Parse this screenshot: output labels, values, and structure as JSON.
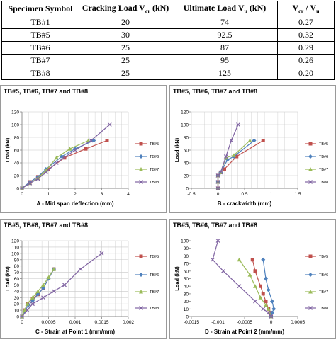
{
  "table": {
    "headers": [
      "Specimen  Symbol",
      "Cracking Load  V",
      "cr",
      " (kN)",
      "Ultimate Load  V",
      "u",
      " (kN)",
      "V",
      "cr",
      " / V",
      "u"
    ],
    "rows": [
      [
        "TB#1",
        "20",
        "74",
        "0.27"
      ],
      [
        "TB#5",
        "30",
        "92.5",
        "0.32"
      ],
      [
        "TB#6",
        "25",
        "87",
        "0.29"
      ],
      [
        "TB#7",
        "25",
        "95",
        "0.26"
      ],
      [
        "TB#8",
        "25",
        "125",
        "0.20"
      ]
    ]
  },
  "colors": {
    "TB#5": "#c0504d",
    "TB#6": "#4f81bd",
    "TB#7": "#9bbb59",
    "TB#8": "#8064a2",
    "grid": "#c8c8c8"
  },
  "chart_data": [
    {
      "type": "line",
      "title": "TB#5, TB#6, TB#7 and TB#8",
      "xlabel": "A - Mid span deflection (mm)",
      "ylabel": "Load (kN)",
      "xlim": [
        0,
        4
      ],
      "ylim": [
        0,
        120
      ],
      "xticks": [
        "0",
        "1",
        "2",
        "3",
        "4"
      ],
      "yticks": [
        "0",
        "20",
        "40",
        "60",
        "80",
        "100",
        "120"
      ],
      "grid": true,
      "legend": "right",
      "series": [
        {
          "name": "TB#5",
          "x": [
            0,
            0.3,
            0.6,
            1.0,
            1.6,
            2.4,
            3.2
          ],
          "y": [
            0,
            10,
            18,
            30,
            48,
            62,
            75
          ]
        },
        {
          "name": "TB#6",
          "x": [
            0,
            0.3,
            0.6,
            0.9,
            1.5,
            2.0,
            2.7
          ],
          "y": [
            0,
            10,
            18,
            30,
            50,
            62,
            75
          ]
        },
        {
          "name": "TB#7",
          "x": [
            0,
            0.3,
            0.6,
            0.9,
            1.3,
            1.8,
            2.5
          ],
          "y": [
            0,
            8,
            16,
            28,
            48,
            62,
            75
          ]
        },
        {
          "name": "TB#8",
          "x": [
            0,
            0.3,
            0.6,
            0.9,
            1.3,
            2.0,
            2.6,
            3.3
          ],
          "y": [
            0,
            8,
            15,
            25,
            40,
            60,
            75,
            100
          ]
        }
      ]
    },
    {
      "type": "line",
      "title": "TB#5, TB#6, TB#7 and TB#8",
      "xlabel": "B - crackwidth (mm)",
      "ylabel": "Load (kN)",
      "xlim": [
        -0.5,
        1.5
      ],
      "ylim": [
        0,
        120
      ],
      "xticks": [
        "-0.5",
        "0",
        "0.5",
        "1",
        "1.5"
      ],
      "yticks": [
        "0",
        "20",
        "40",
        "60",
        "80",
        "100",
        "120"
      ],
      "grid": true,
      "legend": "right",
      "series": [
        {
          "name": "TB#5",
          "x": [
            0,
            0,
            0,
            0.05,
            0.12,
            0.35,
            0.85
          ],
          "y": [
            0,
            10,
            20,
            25,
            30,
            50,
            75
          ]
        },
        {
          "name": "TB#6",
          "x": [
            0,
            0,
            0,
            0.05,
            0.18,
            0.3,
            0.68
          ],
          "y": [
            0,
            10,
            20,
            25,
            45,
            50,
            75
          ]
        },
        {
          "name": "TB#7",
          "x": [
            0,
            0,
            0,
            0.05,
            0.15,
            0.3,
            0.6
          ],
          "y": [
            0,
            10,
            20,
            25,
            48,
            52,
            75
          ]
        },
        {
          "name": "TB#8",
          "x": [
            0,
            0,
            0,
            0.05,
            0.15,
            0.25,
            0.38
          ],
          "y": [
            0,
            10,
            20,
            25,
            50,
            75,
            100
          ]
        }
      ]
    },
    {
      "type": "line",
      "title": "TB#5, TB#6, TB#7 and TB#8",
      "xlabel": "C - Strain at Point 1 (mm/mm)",
      "ylabel": "Load (kN)",
      "xlim": [
        0,
        0.002
      ],
      "ylim": [
        0,
        120
      ],
      "xticks": [
        "0",
        "0.0005",
        "0.001",
        "0.0015",
        "0.002"
      ],
      "yticks": [
        "0",
        "10",
        "20",
        "30",
        "40",
        "50",
        "60",
        "70",
        "80",
        "90",
        "100",
        "110",
        "120"
      ],
      "grid": true,
      "legend": "right",
      "series": [
        {
          "name": "TB#5",
          "x": [
            0,
            5e-05,
            0.0001,
            0.0002,
            0.0003,
            0.0004,
            0.0005,
            0.0006
          ],
          "y": [
            0,
            10,
            20,
            28,
            35,
            45,
            60,
            75
          ]
        },
        {
          "name": "TB#6",
          "x": [
            0,
            5e-05,
            0.00012,
            0.0002,
            0.0003,
            0.0004,
            0.0005,
            0.0006
          ],
          "y": [
            0,
            8,
            18,
            25,
            35,
            45,
            60,
            75
          ]
        },
        {
          "name": "TB#7",
          "x": [
            0,
            5e-05,
            0.0001,
            0.0002,
            0.0003,
            0.0004,
            0.0005,
            0.0006
          ],
          "y": [
            0,
            10,
            20,
            30,
            40,
            50,
            62,
            75
          ]
        },
        {
          "name": "TB#8",
          "x": [
            0,
            0.0001,
            0.0002,
            0.0004,
            0.0006,
            0.0008,
            0.0011,
            0.0015
          ],
          "y": [
            0,
            10,
            20,
            30,
            40,
            50,
            75,
            100
          ]
        }
      ]
    },
    {
      "type": "line",
      "title": "TB#5, TB#6, TB#7 and TB#8",
      "xlabel": "D - Strain at Point 2 (mm/mm)",
      "ylabel": "Load (kN)",
      "xlim": [
        -0.0015,
        0.0005
      ],
      "ylim": [
        0,
        100
      ],
      "xticks": [
        "-0.0015",
        "-0.001",
        "-0.0005",
        "0",
        "0.0005"
      ],
      "yticks": [
        "0",
        "10",
        "20",
        "30",
        "40",
        "50",
        "60",
        "70",
        "80",
        "90",
        "100"
      ],
      "grid": false,
      "legend": "right",
      "series": [
        {
          "name": "TB#5",
          "x": [
            0,
            -2e-05,
            -5e-05,
            -0.0001,
            -0.00015,
            -0.0002,
            -0.0003,
            -0.00035
          ],
          "y": [
            0,
            5,
            10,
            20,
            30,
            40,
            60,
            75
          ]
        },
        {
          "name": "TB#6",
          "x": [
            0,
            2e-05,
            5e-05,
            2e-05,
            -5e-05,
            -0.0001,
            -0.00015
          ],
          "y": [
            0,
            5,
            10,
            20,
            35,
            50,
            75
          ]
        },
        {
          "name": "TB#7",
          "x": [
            0,
            -5e-05,
            -0.0001,
            -0.0002,
            -0.0003,
            -0.0004,
            -0.0006
          ],
          "y": [
            0,
            10,
            15,
            25,
            40,
            55,
            75
          ]
        },
        {
          "name": "TB#8",
          "x": [
            0,
            -5e-05,
            -0.00015,
            -0.0003,
            -0.0006,
            -0.0009,
            -0.0011,
            -0.001
          ],
          "y": [
            0,
            5,
            10,
            20,
            40,
            60,
            75,
            100
          ]
        }
      ]
    }
  ]
}
